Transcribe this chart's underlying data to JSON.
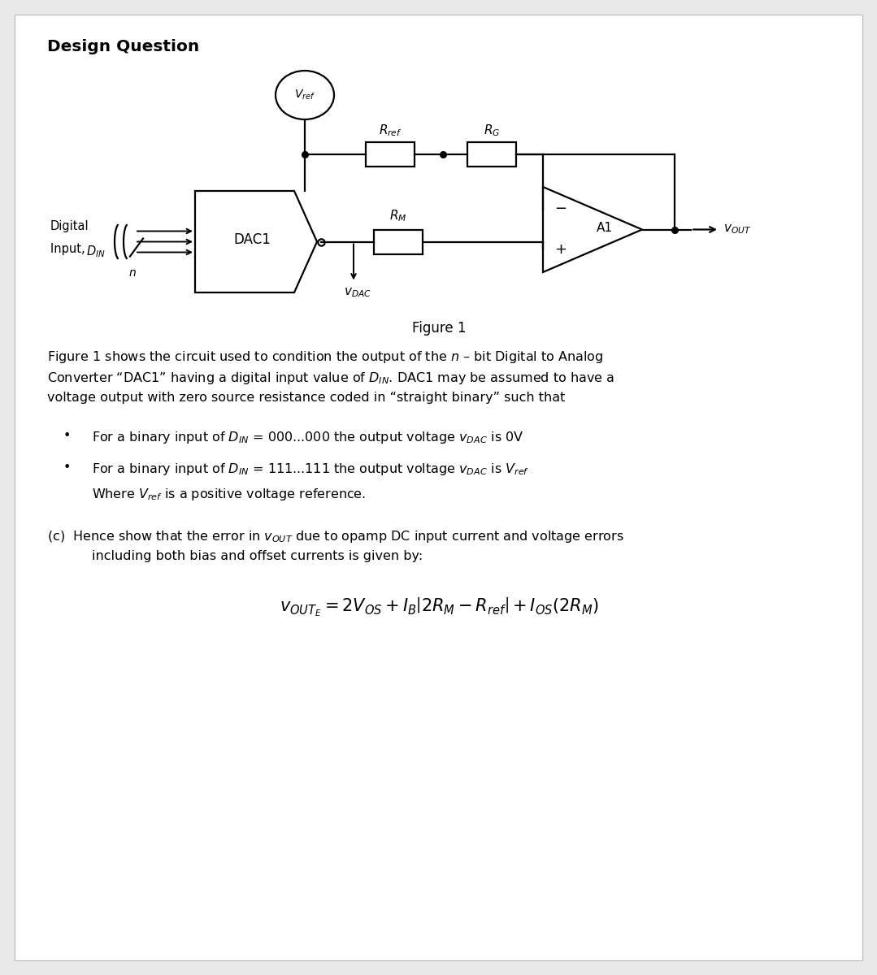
{
  "bg_color": "#e8e8e8",
  "page_bg": "#ffffff",
  "title": "Design Question",
  "fig_label": "Figure 1",
  "line1": "Figure 1 shows the circuit used to condition the output of the – bit Digital to Analog",
  "line2": "Converter “DAC1” having a digital input value of . DAC1 may be assumed to have a",
  "line3": "voltage output with zero source resistance coded in “straight binary” such that",
  "bullet1": "For a binary input of  = 000...000 the output voltage  is 0V",
  "bullet2": "For a binary input of  = 111...111 the output voltage  is ",
  "where_line": "Where  is a positive voltage reference.",
  "part_c_1": "(c)  Hence show that the error in  due to opamp DC input current and voltage errors",
  "part_c_2": "including both bias and offset currents is given by:"
}
